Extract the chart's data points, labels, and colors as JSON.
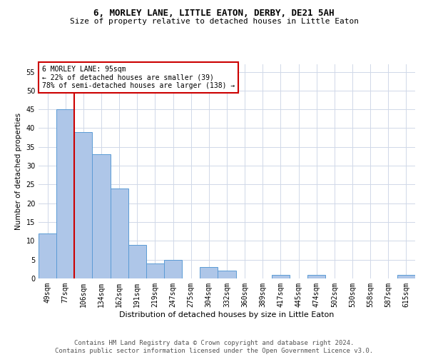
{
  "title": "6, MORLEY LANE, LITTLE EATON, DERBY, DE21 5AH",
  "subtitle": "Size of property relative to detached houses in Little Eaton",
  "xlabel": "Distribution of detached houses by size in Little Eaton",
  "ylabel": "Number of detached properties",
  "categories": [
    "49sqm",
    "77sqm",
    "106sqm",
    "134sqm",
    "162sqm",
    "191sqm",
    "219sqm",
    "247sqm",
    "275sqm",
    "304sqm",
    "332sqm",
    "360sqm",
    "389sqm",
    "417sqm",
    "445sqm",
    "474sqm",
    "502sqm",
    "530sqm",
    "558sqm",
    "587sqm",
    "615sqm"
  ],
  "values": [
    12,
    45,
    39,
    33,
    24,
    9,
    4,
    5,
    0,
    3,
    2,
    0,
    0,
    1,
    0,
    1,
    0,
    0,
    0,
    0,
    1
  ],
  "bar_color": "#aec6e8",
  "bar_edge_color": "#5b9bd5",
  "vline_x": 1.5,
  "vline_color": "#cc0000",
  "annotation_text": "6 MORLEY LANE: 95sqm\n← 22% of detached houses are smaller (39)\n78% of semi-detached houses are larger (138) →",
  "annotation_box_color": "#ffffff",
  "annotation_box_edge_color": "#cc0000",
  "ylim": [
    0,
    57
  ],
  "yticks": [
    0,
    5,
    10,
    15,
    20,
    25,
    30,
    35,
    40,
    45,
    50,
    55
  ],
  "grid_color": "#d0d8e8",
  "footer1": "Contains HM Land Registry data © Crown copyright and database right 2024.",
  "footer2": "Contains public sector information licensed under the Open Government Licence v3.0.",
  "title_fontsize": 9,
  "subtitle_fontsize": 8,
  "xlabel_fontsize": 8,
  "ylabel_fontsize": 7.5,
  "tick_fontsize": 7,
  "annotation_fontsize": 7,
  "footer_fontsize": 6.5
}
